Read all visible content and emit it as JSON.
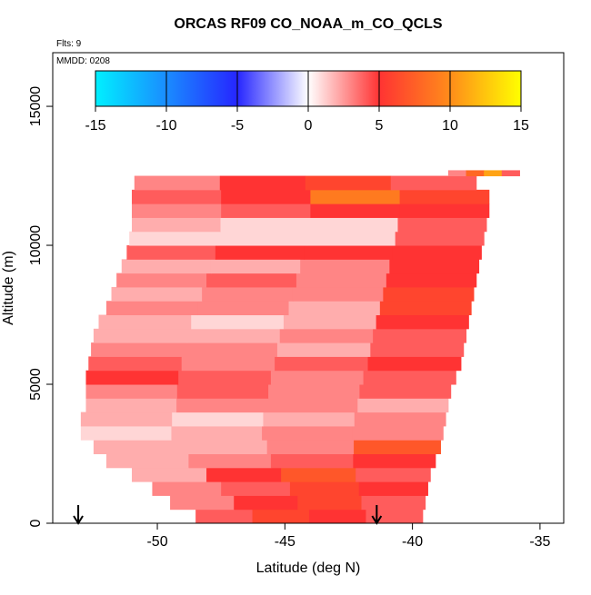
{
  "chart_data": {
    "type": "heatmap",
    "title": "ORCAS RF09 CO_NOAA_m_CO_QCLS",
    "flights": "Flts: 9",
    "date": "MMDD: 0208",
    "xlabel": "Latitude (deg N)",
    "ylabel": "Altitude (m)",
    "xlim": [
      -54.1,
      -34.07
    ],
    "ylim": [
      0,
      16930
    ],
    "xticks": [
      -50,
      -45,
      -40,
      -35
    ],
    "yticks": [
      0,
      5000,
      10000,
      15000
    ],
    "colorbar": {
      "ticks": [
        -15,
        -10,
        -5,
        0,
        5,
        10,
        15
      ],
      "colors": [
        "#00f0ff",
        "#1a8cff",
        "#2626ff",
        "#ffffff",
        "#ff3333",
        "#ff8c1a",
        "#ffff00"
      ]
    },
    "markers": [
      -53.1,
      -41.4
    ],
    "bands": [
      {
        "alt": [
          0,
          500
        ],
        "lat": [
          -48.5,
          -39.6
        ],
        "values": [
          4,
          6,
          5,
          4
        ]
      },
      {
        "alt": [
          500,
          1000
        ],
        "lat": [
          -49.5,
          -39.5
        ],
        "values": [
          3,
          5,
          6,
          4
        ]
      },
      {
        "alt": [
          1000,
          1500
        ],
        "lat": [
          -50.2,
          -39.4
        ],
        "values": [
          3,
          4,
          6,
          5
        ]
      },
      {
        "alt": [
          1500,
          2000
        ],
        "lat": [
          -51,
          -39.3
        ],
        "values": [
          2,
          5,
          7,
          4
        ]
      },
      {
        "alt": [
          2000,
          2500
        ],
        "lat": [
          -52,
          -39.1
        ],
        "values": [
          2,
          3,
          4,
          5
        ]
      },
      {
        "alt": [
          2500,
          3000
        ],
        "lat": [
          -52.5,
          -38.9
        ],
        "values": [
          2,
          2,
          3,
          7
        ]
      },
      {
        "alt": [
          3000,
          3500
        ],
        "lat": [
          -53,
          -38.8
        ],
        "values": [
          1,
          2,
          3,
          3
        ]
      },
      {
        "alt": [
          3500,
          4000
        ],
        "lat": [
          -53,
          -38.7
        ],
        "values": [
          2,
          1,
          2,
          3
        ]
      },
      {
        "alt": [
          4000,
          4500
        ],
        "lat": [
          -52.8,
          -38.6
        ],
        "values": [
          2,
          3,
          3,
          2
        ]
      },
      {
        "alt": [
          4500,
          5000
        ],
        "lat": [
          -52.8,
          -38.5
        ],
        "values": [
          3,
          4,
          3,
          4
        ]
      },
      {
        "alt": [
          5000,
          5500
        ],
        "lat": [
          -52.8,
          -38.3
        ],
        "values": [
          5,
          4,
          3,
          4
        ]
      },
      {
        "alt": [
          5500,
          6000
        ],
        "lat": [
          -52.7,
          -38.1
        ],
        "values": [
          4,
          3,
          4,
          5
        ]
      },
      {
        "alt": [
          6000,
          6500
        ],
        "lat": [
          -52.6,
          -38
        ],
        "values": [
          3,
          3,
          2,
          4
        ]
      },
      {
        "alt": [
          6500,
          7000
        ],
        "lat": [
          -52.5,
          -37.9
        ],
        "values": [
          2,
          2,
          3,
          4
        ]
      },
      {
        "alt": [
          7000,
          7500
        ],
        "lat": [
          -52.3,
          -37.8
        ],
        "values": [
          2,
          1,
          2,
          5
        ]
      },
      {
        "alt": [
          7500,
          8000
        ],
        "lat": [
          -52,
          -37.7
        ],
        "values": [
          3,
          3,
          2,
          6
        ]
      },
      {
        "alt": [
          8000,
          8500
        ],
        "lat": [
          -51.8,
          -37.6
        ],
        "values": [
          2,
          3,
          3,
          6
        ]
      },
      {
        "alt": [
          8500,
          9000
        ],
        "lat": [
          -51.6,
          -37.5
        ],
        "values": [
          3,
          4,
          3,
          5
        ]
      },
      {
        "alt": [
          9000,
          9500
        ],
        "lat": [
          -51.4,
          -37.4
        ],
        "values": [
          2,
          2,
          3,
          5
        ]
      },
      {
        "alt": [
          9500,
          10000
        ],
        "lat": [
          -51.2,
          -37.3
        ],
        "values": [
          4,
          5,
          5,
          5
        ]
      },
      {
        "alt": [
          10000,
          10500
        ],
        "lat": [
          -51.1,
          -37.2
        ],
        "values": [
          1,
          1,
          1,
          4
        ]
      },
      {
        "alt": [
          10500,
          11000
        ],
        "lat": [
          -51,
          -37.1
        ],
        "values": [
          2,
          1,
          1,
          4
        ]
      },
      {
        "alt": [
          11000,
          11500
        ],
        "lat": [
          -51,
          -37
        ],
        "values": [
          3,
          4,
          5,
          5
        ]
      },
      {
        "alt": [
          11500,
          12000
        ],
        "lat": [
          -51,
          -37
        ],
        "values": [
          4,
          5,
          9,
          6
        ]
      },
      {
        "alt": [
          12000,
          12500
        ],
        "lat": [
          -50.9,
          -37.5
        ],
        "values": [
          3,
          5,
          6,
          4
        ]
      },
      {
        "alt": [
          12500,
          12700
        ],
        "lat": [
          -38.6,
          -35.8
        ],
        "values": [
          3,
          8,
          11,
          4
        ]
      }
    ]
  }
}
